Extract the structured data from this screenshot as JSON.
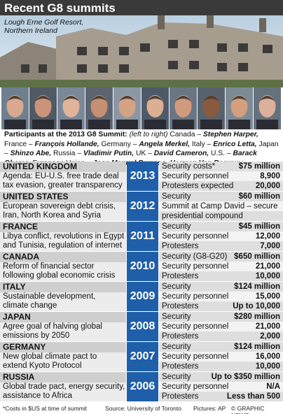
{
  "header": {
    "title": "Recent G8 summits",
    "caption": [
      "Lough Erne Golf Resort,",
      "Northern Ireland"
    ]
  },
  "participants": {
    "intro": "Participants at the 2013 G8 Summit:",
    "note": "(left to right)",
    "entries": [
      {
        "country": "Canada –",
        "leader": "Stephen Harper,"
      },
      {
        "country": "France –",
        "leader": "François Hollande,"
      },
      {
        "country": "Germany –",
        "leader": "Angela Merkel,"
      },
      {
        "country": "Italy –",
        "leader": "Enrico Letta,"
      },
      {
        "country": "Japan –",
        "leader": "Shinzo Abe,"
      },
      {
        "country": "Russia –",
        "leader": "Vladimir Putin,"
      },
      {
        "country": "UK –",
        "leader": "David Cameron,"
      },
      {
        "country": "U.S. –",
        "leader": "Barack Obama,"
      },
      {
        "country": "European Union –",
        "leader": "Jose Manuel Barroso,"
      },
      {
        "country": "",
        "leader": "Herman Van Rompuy"
      }
    ]
  },
  "summits": [
    {
      "country": "UNITED KINGDOM",
      "agenda": [
        "Agenda: EU-U.S. free trade deal",
        "tax evasion, greater transparency"
      ],
      "year": "2013",
      "security": [
        {
          "label": "Security costs*",
          "value": "$75 million"
        },
        {
          "label": "Security personnel",
          "value": "8,900"
        },
        {
          "label": "Protesters expected",
          "value": "20,000"
        }
      ]
    },
    {
      "country": "UNITED STATES",
      "agenda": [
        "European sovereign debt crisis,",
        "Iran, North Korea and Syria"
      ],
      "year": "2012",
      "security": [
        {
          "label": "Security",
          "value": "$60 million"
        },
        {
          "label": "Summit at Camp David – secure"
        },
        {
          "label": "presidential compound"
        }
      ]
    },
    {
      "country": "FRANCE",
      "agenda": [
        "Libya conflict, revolutions in Egypt",
        "and Tunisia, regulation of internet"
      ],
      "year": "2011",
      "security": [
        {
          "label": "Security",
          "value": "$45 million"
        },
        {
          "label": "Security personnel",
          "value": "12,000"
        },
        {
          "label": "Protesters",
          "value": "7,000"
        }
      ]
    },
    {
      "country": "CANADA",
      "agenda": [
        "Reform of financial sector",
        "following global economic crisis"
      ],
      "year": "2010",
      "security": [
        {
          "label": "Security (G8-G20)",
          "value": "$650 million"
        },
        {
          "label": "Security personnel",
          "value": "21,000"
        },
        {
          "label": "Protesters",
          "value": "10,000"
        }
      ]
    },
    {
      "country": "ITALY",
      "agenda": [
        "Sustainable development,",
        "climate change"
      ],
      "year": "2009",
      "security": [
        {
          "label": "Security",
          "value": "$124 million"
        },
        {
          "label": "Security personnel",
          "value": "15,000"
        },
        {
          "label": "Protesters",
          "value": "Up to 10,000"
        }
      ]
    },
    {
      "country": "JAPAN",
      "agenda": [
        "Agree goal of halving global",
        "emissions by 2050"
      ],
      "year": "2008",
      "security": [
        {
          "label": "Security",
          "value": "$280 million"
        },
        {
          "label": "Security personnel",
          "value": "21,000"
        },
        {
          "label": "Protesters",
          "value": "2,000"
        }
      ]
    },
    {
      "country": "GERMANY",
      "agenda": [
        "New global climate pact to",
        "extend Kyoto Protocol"
      ],
      "year": "2007",
      "security": [
        {
          "label": "Security",
          "value": "$124 million"
        },
        {
          "label": "Security personnel",
          "value": "16,000"
        },
        {
          "label": "Protesters",
          "value": "10,000"
        }
      ]
    },
    {
      "country": "RUSSIA",
      "agenda": [
        "Global trade pact, energy security,",
        "assistance to Africa"
      ],
      "year": "2006",
      "security": [
        {
          "label": "Security",
          "value": "Up to $350 million"
        },
        {
          "label": "Security personnel",
          "value": "N/A"
        },
        {
          "label": "Protesters",
          "value": "Less than 500"
        }
      ]
    }
  ],
  "footer": {
    "note": "*Costs in $US at time of summit",
    "source": "Source: University of Toronto",
    "pictures": "Pictures: AP",
    "credit": "© GRAPHIC NEWS"
  }
}
